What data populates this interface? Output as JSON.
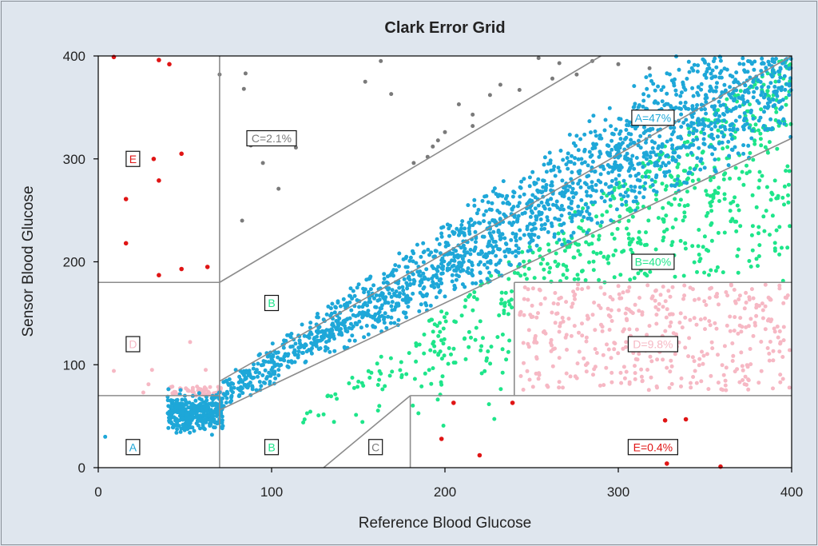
{
  "chart_data": {
    "type": "scatter",
    "title": "Clark Error Grid",
    "xlabel": "Reference Blood Glucose",
    "ylabel": "Sensor Blood Glucose",
    "xlim": [
      0,
      400
    ],
    "ylim": [
      0,
      400
    ],
    "x_ticks": [
      0,
      100,
      200,
      300,
      400
    ],
    "y_ticks": [
      0,
      100,
      200,
      300,
      400
    ],
    "grid": false,
    "colors": {
      "A": "#1ea7d8",
      "B": "#1ee58a",
      "C": "#7a7a7a",
      "D": "#f6b8c4",
      "E": "#e01515",
      "zone_line": "#8c8c8c",
      "background": "#dfe6ee"
    },
    "zone_labels": [
      {
        "text": "A",
        "x": 20,
        "y": 20,
        "color": "#1ea7d8"
      },
      {
        "text": "B",
        "x": 100,
        "y": 20,
        "color": "#1ee58a"
      },
      {
        "text": "B",
        "x": 100,
        "y": 160,
        "color": "#1ee58a"
      },
      {
        "text": "C",
        "x": 160,
        "y": 20,
        "color": "#7a7a7a"
      },
      {
        "text": "D",
        "x": 20,
        "y": 120,
        "color": "#f6b8c4"
      },
      {
        "text": "E",
        "x": 20,
        "y": 300,
        "color": "#e01515"
      },
      {
        "text": "A=47%",
        "x": 320,
        "y": 340,
        "color": "#1ea7d8"
      },
      {
        "text": "B=40%",
        "x": 320,
        "y": 200,
        "color": "#1ee58a"
      },
      {
        "text": "C=2.1%",
        "x": 100,
        "y": 320,
        "color": "#7a7a7a"
      },
      {
        "text": "D=9.8%",
        "x": 320,
        "y": 120,
        "color": "#f6b8c4"
      },
      {
        "text": "E=0.4%",
        "x": 320,
        "y": 20,
        "color": "#e01515"
      }
    ],
    "zone_summary": [
      {
        "zone": "A",
        "percent": 47
      },
      {
        "zone": "B",
        "percent": 40
      },
      {
        "zone": "C",
        "percent": 2.1
      },
      {
        "zone": "D",
        "percent": 9.8
      },
      {
        "zone": "E",
        "percent": 0.4
      }
    ],
    "zone_boundaries": [
      {
        "x1": 70,
        "y1": 0,
        "x2": 70,
        "y2": 400
      },
      {
        "x1": 0,
        "y1": 70,
        "x2": 70,
        "y2": 70
      },
      {
        "x1": 0,
        "y1": 180,
        "x2": 70,
        "y2": 180
      },
      {
        "x1": 70,
        "y1": 180,
        "x2": 290,
        "y2": 400
      },
      {
        "x1": 70,
        "y1": 84,
        "x2": 400,
        "y2": 400
      },
      {
        "x1": 70,
        "y1": 56,
        "x2": 400,
        "y2": 320
      },
      {
        "x1": 130,
        "y1": 0,
        "x2": 180,
        "y2": 70
      },
      {
        "x1": 180,
        "y1": 0,
        "x2": 180,
        "y2": 70
      },
      {
        "x1": 180,
        "y1": 70,
        "x2": 400,
        "y2": 70
      },
      {
        "x1": 240,
        "y1": 70,
        "x2": 240,
        "y2": 180
      },
      {
        "x1": 240,
        "y1": 180,
        "x2": 400,
        "y2": 180
      }
    ],
    "series": [
      {
        "zone": "E",
        "points": [
          [
            9,
            399
          ],
          [
            35,
            396
          ],
          [
            41,
            392
          ],
          [
            48,
            305
          ],
          [
            32,
            300
          ],
          [
            35,
            279
          ],
          [
            16,
            261
          ],
          [
            16,
            218
          ],
          [
            48,
            193
          ],
          [
            63,
            195
          ],
          [
            35,
            187
          ],
          [
            205,
            63
          ],
          [
            239,
            63
          ],
          [
            198,
            28
          ],
          [
            220,
            12
          ],
          [
            327,
            46
          ],
          [
            339,
            47
          ],
          [
            328,
            4
          ],
          [
            359,
            1
          ]
        ]
      },
      {
        "zone": "D",
        "points": [
          [
            53,
            122
          ],
          [
            9,
            94
          ],
          [
            31,
            95
          ],
          [
            29,
            81
          ],
          [
            26,
            73
          ],
          [
            62,
            95
          ]
        ],
        "generated": {
          "xmin": 243,
          "xmax": 399,
          "ymin": 75,
          "ymax": 178,
          "count": 420
        }
      },
      {
        "zone": "C",
        "points": [
          [
            285,
            395
          ],
          [
            300,
            392
          ],
          [
            318,
            388
          ],
          [
            276,
            382
          ],
          [
            262,
            378
          ],
          [
            232,
            372
          ],
          [
            243,
            367
          ],
          [
            226,
            362
          ],
          [
            208,
            353
          ],
          [
            216,
            343
          ],
          [
            216,
            332
          ],
          [
            200,
            326
          ],
          [
            196,
            318
          ],
          [
            193,
            312
          ],
          [
            190,
            302
          ],
          [
            182,
            296
          ],
          [
            95,
            296
          ],
          [
            85,
            383
          ],
          [
            84,
            368
          ],
          [
            70,
            382
          ],
          [
            154,
            375
          ],
          [
            163,
            395
          ],
          [
            169,
            363
          ],
          [
            104,
            271
          ],
          [
            114,
            311
          ],
          [
            88,
            313
          ],
          [
            83,
            240
          ],
          [
            254,
            398
          ],
          [
            266,
            393
          ]
        ]
      }
    ]
  }
}
